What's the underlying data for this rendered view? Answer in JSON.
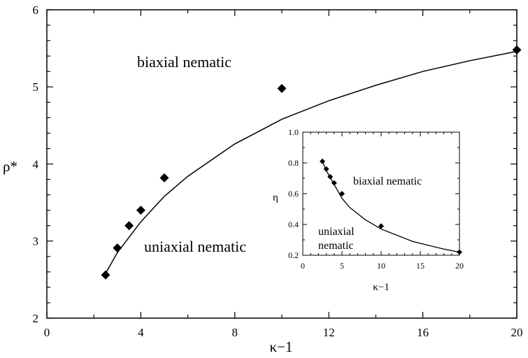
{
  "chart_data": [
    {
      "type": "line",
      "role": "main",
      "xlabel": "κ−1",
      "ylabel": "ρ*",
      "xlim": [
        0,
        20
      ],
      "ylim": [
        2,
        6
      ],
      "x_ticks": [
        "0",
        "4",
        "8",
        "12",
        "16",
        "20"
      ],
      "y_ticks": [
        "2",
        "3",
        "4",
        "5",
        "6"
      ],
      "annotations": [
        "biaxial nematic",
        "uniaxial nematic"
      ],
      "curve": {
        "x": [
          2.5,
          3,
          4,
          5,
          6,
          8,
          10,
          12,
          14,
          16,
          18,
          20
        ],
        "y": [
          2.58,
          2.85,
          3.25,
          3.58,
          3.84,
          4.26,
          4.58,
          4.82,
          5.02,
          5.2,
          5.34,
          5.46
        ]
      },
      "points": {
        "x": [
          2.5,
          3,
          3.5,
          4,
          5,
          10,
          20
        ],
        "y": [
          2.56,
          2.91,
          3.2,
          3.4,
          3.82,
          4.98,
          5.48
        ]
      }
    },
    {
      "type": "line",
      "role": "inset",
      "xlabel": "κ−1",
      "ylabel": "η",
      "xlim": [
        0,
        20
      ],
      "ylim": [
        0.2,
        1.0
      ],
      "x_ticks": [
        "0",
        "5",
        "10",
        "15",
        "20"
      ],
      "y_ticks": [
        "0.2",
        "0.4",
        "0.6",
        "0.8",
        "1.0"
      ],
      "annotations": [
        "biaxial nematic",
        "uniaxial",
        "nematic"
      ],
      "curve": {
        "x": [
          2.5,
          3,
          4,
          5,
          6,
          8,
          10,
          12,
          14,
          16,
          18,
          20
        ],
        "y": [
          0.81,
          0.75,
          0.66,
          0.57,
          0.51,
          0.43,
          0.37,
          0.33,
          0.29,
          0.265,
          0.24,
          0.22
        ]
      },
      "points": {
        "x": [
          2.5,
          3,
          3.5,
          4,
          5,
          10,
          20
        ],
        "y": [
          0.81,
          0.76,
          0.71,
          0.67,
          0.6,
          0.39,
          0.22
        ]
      }
    }
  ]
}
